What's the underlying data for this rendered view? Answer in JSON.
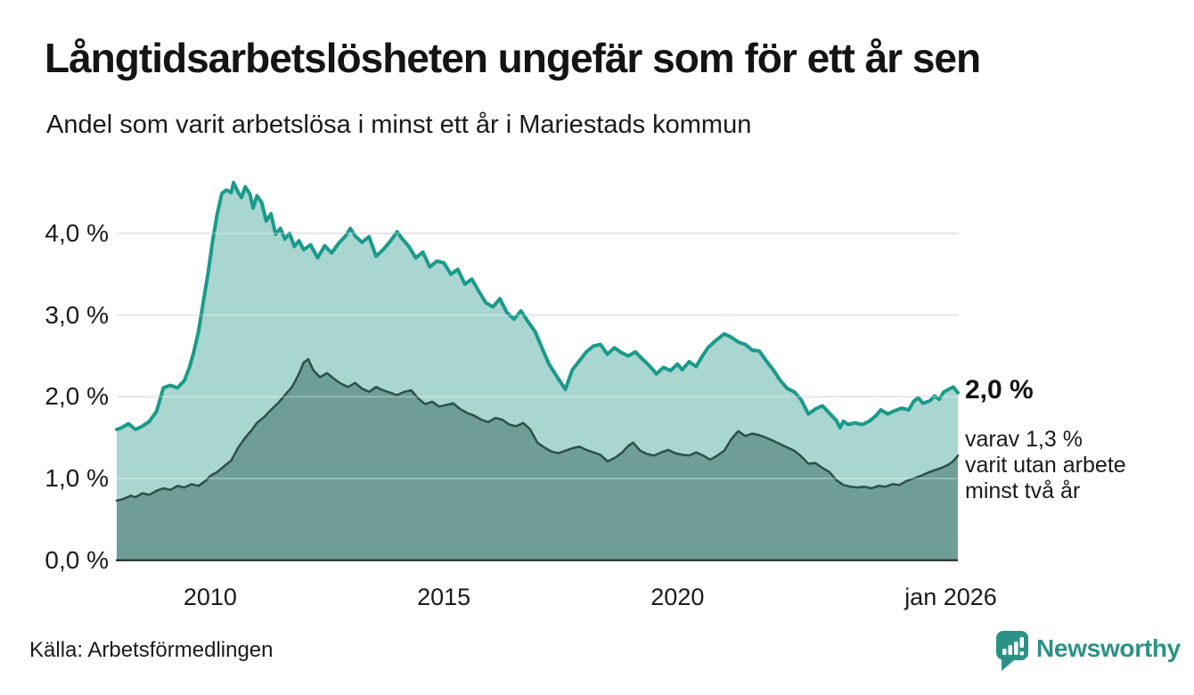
{
  "header": {
    "title": "Långtidsarbetslösheten ungefär som för ett år sen",
    "subtitle": "Andel som varit arbetslösa i minst ett år i Mariestads kommun"
  },
  "annotations": {
    "total_value": "2,0 %",
    "detail": "varav 1,3 %\nvarit utan arbete\nminst två år"
  },
  "footer": {
    "source": "Källa: Arbetsförmedlingen",
    "logo_text": "Newsworthy"
  },
  "colors": {
    "accent_teal": "#1a9a8a",
    "fill_total": "#a9d6d0",
    "line_two_years": "#2d4f4b",
    "fill_two_years": "#6f9e97",
    "grid": "#dedede",
    "axis": "#2e3f3d",
    "text": "#1a1a1a",
    "logo_teal": "#2b9285"
  },
  "chart_data": {
    "type": "area",
    "title": "Långtidsarbetslösheten ungefär som för ett år sen",
    "subtitle": "Andel som varit arbetslösa i minst ett år i Mariestads kommun",
    "xlabel": "",
    "ylabel": "",
    "grid": "horizontal",
    "legend_position": "none",
    "xlim": [
      2008,
      2026
    ],
    "ylim": [
      0,
      4.8
    ],
    "x_ticks": [
      {
        "t": 2010,
        "label": "2010"
      },
      {
        "t": 2015,
        "label": "2015"
      },
      {
        "t": 2020,
        "label": "2020"
      },
      {
        "t": 2026,
        "label": "jan 2026"
      }
    ],
    "y_ticks": [
      {
        "v": 0,
        "label": "0,0 %"
      },
      {
        "v": 1,
        "label": "1,0 %"
      },
      {
        "v": 2,
        "label": "2,0 %"
      },
      {
        "v": 3,
        "label": "3,0 %"
      },
      {
        "v": 4,
        "label": "4,0 %"
      }
    ],
    "series": [
      {
        "name": "Arbetslösa minst ett år",
        "end_label": "2,0 %",
        "color": "#1a9a8a",
        "fill": "#a9d6d0",
        "line_width": 4,
        "points": [
          [
            2008.0,
            1.6
          ],
          [
            2008.1,
            1.62
          ],
          [
            2008.25,
            1.67
          ],
          [
            2008.4,
            1.6
          ],
          [
            2008.55,
            1.64
          ],
          [
            2008.7,
            1.7
          ],
          [
            2008.85,
            1.82
          ],
          [
            2009.0,
            2.11
          ],
          [
            2009.15,
            2.14
          ],
          [
            2009.3,
            2.11
          ],
          [
            2009.45,
            2.2
          ],
          [
            2009.55,
            2.35
          ],
          [
            2009.65,
            2.55
          ],
          [
            2009.75,
            2.8
          ],
          [
            2009.85,
            3.15
          ],
          [
            2009.95,
            3.5
          ],
          [
            2010.05,
            3.9
          ],
          [
            2010.15,
            4.24
          ],
          [
            2010.25,
            4.49
          ],
          [
            2010.35,
            4.53
          ],
          [
            2010.45,
            4.5
          ],
          [
            2010.5,
            4.62
          ],
          [
            2010.6,
            4.5
          ],
          [
            2010.67,
            4.44
          ],
          [
            2010.75,
            4.57
          ],
          [
            2010.85,
            4.48
          ],
          [
            2010.92,
            4.31
          ],
          [
            2011.0,
            4.46
          ],
          [
            2011.1,
            4.38
          ],
          [
            2011.2,
            4.15
          ],
          [
            2011.3,
            4.24
          ],
          [
            2011.4,
            3.99
          ],
          [
            2011.5,
            4.06
          ],
          [
            2011.6,
            3.93
          ],
          [
            2011.7,
            4.0
          ],
          [
            2011.8,
            3.84
          ],
          [
            2011.9,
            3.91
          ],
          [
            2012.0,
            3.8
          ],
          [
            2012.15,
            3.86
          ],
          [
            2012.3,
            3.7
          ],
          [
            2012.45,
            3.85
          ],
          [
            2012.6,
            3.76
          ],
          [
            2012.75,
            3.88
          ],
          [
            2012.9,
            3.97
          ],
          [
            2013.0,
            4.06
          ],
          [
            2013.1,
            3.97
          ],
          [
            2013.25,
            3.89
          ],
          [
            2013.4,
            3.96
          ],
          [
            2013.55,
            3.72
          ],
          [
            2013.7,
            3.8
          ],
          [
            2013.85,
            3.9
          ],
          [
            2014.0,
            4.02
          ],
          [
            2014.1,
            3.94
          ],
          [
            2014.25,
            3.84
          ],
          [
            2014.4,
            3.7
          ],
          [
            2014.55,
            3.77
          ],
          [
            2014.7,
            3.59
          ],
          [
            2014.85,
            3.66
          ],
          [
            2015.0,
            3.64
          ],
          [
            2015.15,
            3.5
          ],
          [
            2015.3,
            3.56
          ],
          [
            2015.45,
            3.38
          ],
          [
            2015.6,
            3.44
          ],
          [
            2015.75,
            3.29
          ],
          [
            2015.9,
            3.15
          ],
          [
            2016.05,
            3.1
          ],
          [
            2016.2,
            3.2
          ],
          [
            2016.35,
            3.03
          ],
          [
            2016.5,
            2.95
          ],
          [
            2016.65,
            3.05
          ],
          [
            2016.8,
            2.92
          ],
          [
            2016.95,
            2.8
          ],
          [
            2017.1,
            2.6
          ],
          [
            2017.25,
            2.4
          ],
          [
            2017.45,
            2.22
          ],
          [
            2017.6,
            2.09
          ],
          [
            2017.75,
            2.33
          ],
          [
            2017.9,
            2.44
          ],
          [
            2018.05,
            2.55
          ],
          [
            2018.2,
            2.62
          ],
          [
            2018.35,
            2.64
          ],
          [
            2018.5,
            2.52
          ],
          [
            2018.65,
            2.6
          ],
          [
            2018.8,
            2.54
          ],
          [
            2018.95,
            2.5
          ],
          [
            2019.1,
            2.55
          ],
          [
            2019.25,
            2.46
          ],
          [
            2019.4,
            2.38
          ],
          [
            2019.55,
            2.28
          ],
          [
            2019.7,
            2.36
          ],
          [
            2019.85,
            2.32
          ],
          [
            2020.0,
            2.4
          ],
          [
            2020.1,
            2.33
          ],
          [
            2020.25,
            2.43
          ],
          [
            2020.4,
            2.37
          ],
          [
            2020.5,
            2.47
          ],
          [
            2020.65,
            2.6
          ],
          [
            2020.8,
            2.68
          ],
          [
            2021.0,
            2.77
          ],
          [
            2021.15,
            2.73
          ],
          [
            2021.3,
            2.67
          ],
          [
            2021.45,
            2.64
          ],
          [
            2021.6,
            2.57
          ],
          [
            2021.75,
            2.56
          ],
          [
            2021.9,
            2.44
          ],
          [
            2022.05,
            2.33
          ],
          [
            2022.2,
            2.2
          ],
          [
            2022.35,
            2.1
          ],
          [
            2022.5,
            2.06
          ],
          [
            2022.65,
            1.96
          ],
          [
            2022.8,
            1.79
          ],
          [
            2022.95,
            1.85
          ],
          [
            2023.1,
            1.89
          ],
          [
            2023.25,
            1.8
          ],
          [
            2023.4,
            1.71
          ],
          [
            2023.48,
            1.62
          ],
          [
            2023.55,
            1.7
          ],
          [
            2023.65,
            1.66
          ],
          [
            2023.8,
            1.68
          ],
          [
            2023.95,
            1.66
          ],
          [
            2024.1,
            1.7
          ],
          [
            2024.25,
            1.77
          ],
          [
            2024.35,
            1.84
          ],
          [
            2024.5,
            1.79
          ],
          [
            2024.65,
            1.83
          ],
          [
            2024.8,
            1.86
          ],
          [
            2024.95,
            1.84
          ],
          [
            2025.05,
            1.94
          ],
          [
            2025.15,
            1.99
          ],
          [
            2025.25,
            1.92
          ],
          [
            2025.4,
            1.95
          ],
          [
            2025.5,
            2.01
          ],
          [
            2025.6,
            1.97
          ],
          [
            2025.7,
            2.06
          ],
          [
            2025.8,
            2.09
          ],
          [
            2025.9,
            2.12
          ],
          [
            2026.0,
            2.05
          ]
        ]
      },
      {
        "name": "varav utan arbete minst två år",
        "end_label": "1,3 %",
        "color": "#2d4f4b",
        "fill": "#6f9e97",
        "line_width": 2.5,
        "points": [
          [
            2008.0,
            0.73
          ],
          [
            2008.15,
            0.75
          ],
          [
            2008.3,
            0.79
          ],
          [
            2008.4,
            0.77
          ],
          [
            2008.55,
            0.82
          ],
          [
            2008.7,
            0.8
          ],
          [
            2008.85,
            0.85
          ],
          [
            2009.0,
            0.88
          ],
          [
            2009.15,
            0.86
          ],
          [
            2009.3,
            0.91
          ],
          [
            2009.45,
            0.89
          ],
          [
            2009.6,
            0.93
          ],
          [
            2009.75,
            0.91
          ],
          [
            2009.9,
            0.97
          ],
          [
            2010.0,
            1.03
          ],
          [
            2010.15,
            1.08
          ],
          [
            2010.3,
            1.15
          ],
          [
            2010.45,
            1.22
          ],
          [
            2010.6,
            1.38
          ],
          [
            2010.75,
            1.5
          ],
          [
            2010.9,
            1.6
          ],
          [
            2011.0,
            1.68
          ],
          [
            2011.15,
            1.75
          ],
          [
            2011.3,
            1.84
          ],
          [
            2011.45,
            1.92
          ],
          [
            2011.6,
            2.02
          ],
          [
            2011.75,
            2.12
          ],
          [
            2011.9,
            2.28
          ],
          [
            2012.0,
            2.42
          ],
          [
            2012.1,
            2.46
          ],
          [
            2012.2,
            2.33
          ],
          [
            2012.35,
            2.24
          ],
          [
            2012.5,
            2.29
          ],
          [
            2012.65,
            2.22
          ],
          [
            2012.8,
            2.16
          ],
          [
            2012.95,
            2.12
          ],
          [
            2013.1,
            2.17
          ],
          [
            2013.25,
            2.1
          ],
          [
            2013.4,
            2.06
          ],
          [
            2013.55,
            2.12
          ],
          [
            2013.7,
            2.08
          ],
          [
            2013.85,
            2.05
          ],
          [
            2014.0,
            2.02
          ],
          [
            2014.15,
            2.06
          ],
          [
            2014.3,
            2.08
          ],
          [
            2014.45,
            1.98
          ],
          [
            2014.6,
            1.91
          ],
          [
            2014.75,
            1.94
          ],
          [
            2014.9,
            1.88
          ],
          [
            2015.05,
            1.9
          ],
          [
            2015.2,
            1.92
          ],
          [
            2015.35,
            1.85
          ],
          [
            2015.5,
            1.8
          ],
          [
            2015.65,
            1.77
          ],
          [
            2015.8,
            1.72
          ],
          [
            2015.95,
            1.69
          ],
          [
            2016.1,
            1.74
          ],
          [
            2016.25,
            1.72
          ],
          [
            2016.4,
            1.66
          ],
          [
            2016.55,
            1.64
          ],
          [
            2016.7,
            1.68
          ],
          [
            2016.85,
            1.6
          ],
          [
            2017.0,
            1.44
          ],
          [
            2017.15,
            1.38
          ],
          [
            2017.3,
            1.33
          ],
          [
            2017.45,
            1.31
          ],
          [
            2017.6,
            1.34
          ],
          [
            2017.75,
            1.37
          ],
          [
            2017.9,
            1.39
          ],
          [
            2018.05,
            1.35
          ],
          [
            2018.2,
            1.32
          ],
          [
            2018.35,
            1.29
          ],
          [
            2018.5,
            1.21
          ],
          [
            2018.65,
            1.25
          ],
          [
            2018.8,
            1.31
          ],
          [
            2018.95,
            1.4
          ],
          [
            2019.05,
            1.44
          ],
          [
            2019.2,
            1.34
          ],
          [
            2019.35,
            1.3
          ],
          [
            2019.5,
            1.28
          ],
          [
            2019.65,
            1.32
          ],
          [
            2019.8,
            1.35
          ],
          [
            2019.95,
            1.31
          ],
          [
            2020.1,
            1.29
          ],
          [
            2020.25,
            1.28
          ],
          [
            2020.4,
            1.32
          ],
          [
            2020.55,
            1.28
          ],
          [
            2020.7,
            1.23
          ],
          [
            2020.85,
            1.28
          ],
          [
            2021.0,
            1.34
          ],
          [
            2021.15,
            1.48
          ],
          [
            2021.3,
            1.58
          ],
          [
            2021.45,
            1.52
          ],
          [
            2021.6,
            1.55
          ],
          [
            2021.75,
            1.53
          ],
          [
            2021.9,
            1.5
          ],
          [
            2022.05,
            1.46
          ],
          [
            2022.2,
            1.42
          ],
          [
            2022.35,
            1.38
          ],
          [
            2022.5,
            1.34
          ],
          [
            2022.65,
            1.27
          ],
          [
            2022.8,
            1.18
          ],
          [
            2022.95,
            1.19
          ],
          [
            2023.1,
            1.13
          ],
          [
            2023.25,
            1.08
          ],
          [
            2023.4,
            0.98
          ],
          [
            2023.55,
            0.92
          ],
          [
            2023.7,
            0.9
          ],
          [
            2023.85,
            0.89
          ],
          [
            2024.0,
            0.9
          ],
          [
            2024.15,
            0.88
          ],
          [
            2024.3,
            0.91
          ],
          [
            2024.45,
            0.9
          ],
          [
            2024.6,
            0.93
          ],
          [
            2024.75,
            0.92
          ],
          [
            2024.9,
            0.97
          ],
          [
            2025.05,
            1.0
          ],
          [
            2025.2,
            1.03
          ],
          [
            2025.35,
            1.07
          ],
          [
            2025.5,
            1.1
          ],
          [
            2025.65,
            1.13
          ],
          [
            2025.8,
            1.17
          ],
          [
            2025.9,
            1.21
          ],
          [
            2026.0,
            1.28
          ]
        ]
      }
    ]
  }
}
